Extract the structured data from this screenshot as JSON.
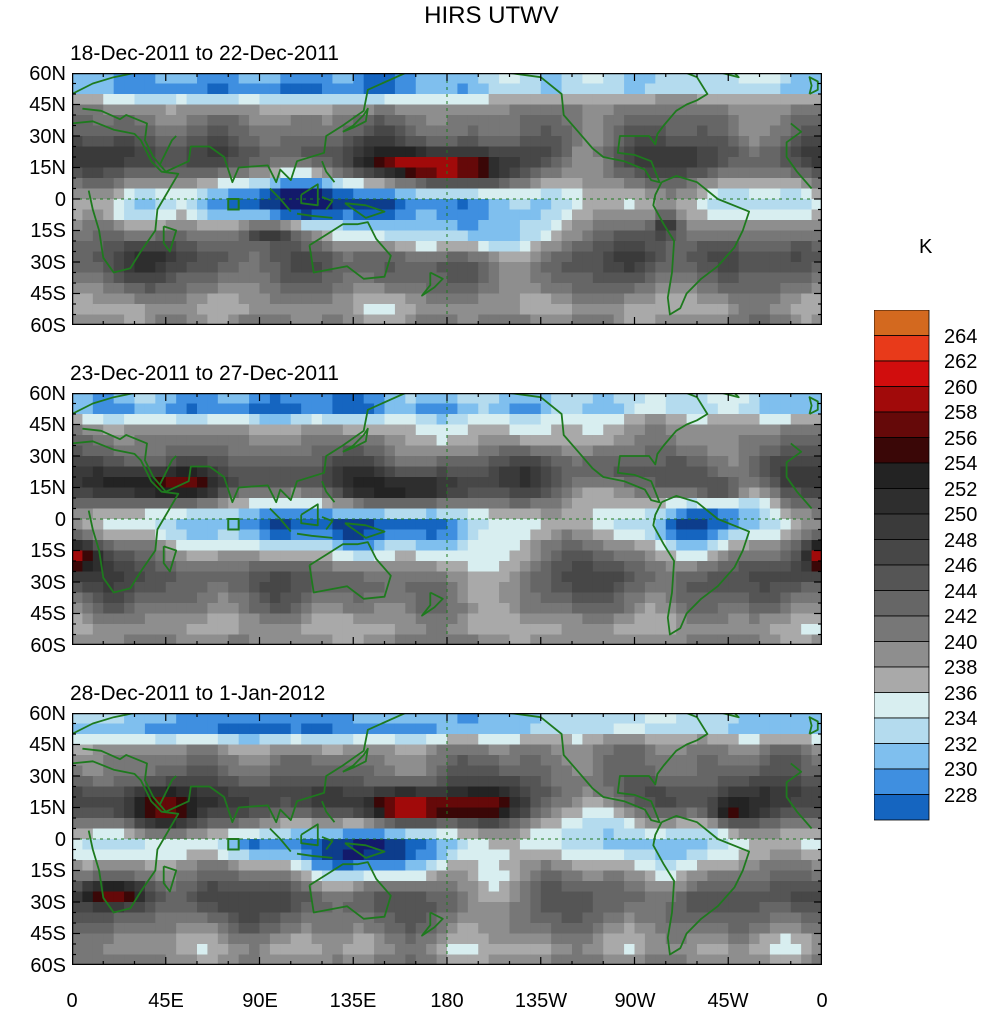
{
  "title": "HIRS UTWV",
  "unit": "K",
  "colors": {
    "coast": "#1e7a1e",
    "cmap": [
      "#131a6b",
      "#0d3d8c",
      "#1565c0",
      "#3f8fe0",
      "#7fbfee",
      "#b4dbee",
      "#d8eef0",
      "#a9a9a9",
      "#8e8e8e",
      "#777777",
      "#666666",
      "#555555",
      "#474747",
      "#3a3a3a",
      "#2e2e2e",
      "#232323",
      "#3a0707",
      "#650909",
      "#a10a0a",
      "#d10d0d",
      "#e83a1a",
      "#d3691f"
    ]
  },
  "colorbar": {
    "levels": [
      "264",
      "262",
      "260",
      "258",
      "256",
      "254",
      "252",
      "250",
      "248",
      "246",
      "244",
      "242",
      "240",
      "238",
      "236",
      "234",
      "232",
      "230",
      "228"
    ]
  },
  "axes": {
    "lat_labels": [
      "60N",
      "45N",
      "30N",
      "15N",
      "0",
      "15S",
      "30S",
      "45S",
      "60S"
    ],
    "lon_labels": [
      "0",
      "45E",
      "90E",
      "135E",
      "180",
      "135W",
      "90W",
      "45W",
      "0"
    ]
  },
  "panels": [
    {
      "subtitle": "18-Dec-2011 to 22-Dec-2011"
    },
    {
      "subtitle": "23-Dec-2011 to 27-Dec-2011"
    },
    {
      "subtitle": "28-Dec-2011 to 1-Jan-2012"
    }
  ],
  "chart_data": {
    "type": "heatmap",
    "variable": "HIRS UTWV",
    "unit": "K",
    "x_range": [
      0,
      360
    ],
    "y_range": [
      -60,
      60
    ],
    "color_levels": [
      228,
      230,
      232,
      234,
      236,
      238,
      240,
      242,
      244,
      246,
      248,
      250,
      252,
      254,
      256,
      258,
      260,
      262,
      264
    ],
    "panels": [
      "18-Dec-2011 to 22-Dec-2011",
      "23-Dec-2011 to 27-Dec-2011",
      "28-Dec-2011 to 1-Jan-2012"
    ]
  }
}
